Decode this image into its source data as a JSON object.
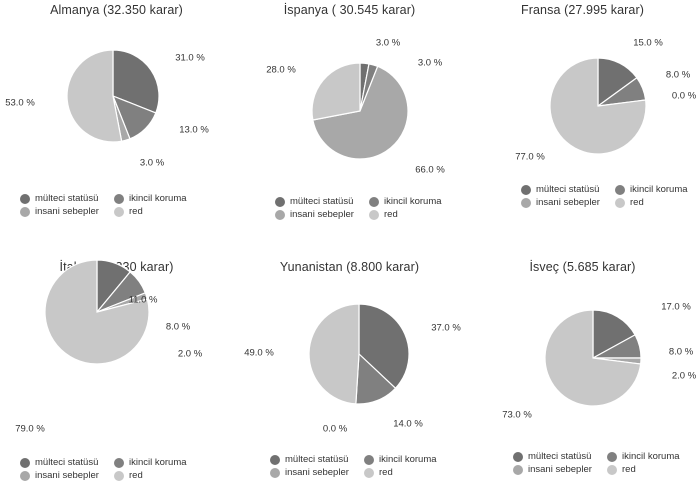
{
  "legend": [
    {
      "label": "mülteci statüsü",
      "color": "#707070"
    },
    {
      "label": "ikincil koruma",
      "color": "#808080"
    },
    {
      "label": "insani sebepler",
      "color": "#a8a8a8"
    },
    {
      "label": "red",
      "color": "#c8c8c8"
    }
  ],
  "chart_data": [
    {
      "type": "pie",
      "title": "Almanya (32.350 karar)",
      "categories": [
        "mülteci statüsü",
        "ikincil koruma",
        "insani sebepler",
        "red"
      ],
      "values": [
        31.0,
        13.0,
        3.0,
        53.0
      ],
      "labels": [
        "31.0 %",
        "13.0 %",
        "3.0 %",
        "53.0 %"
      ]
    },
    {
      "type": "pie",
      "title": "İspanya ( 30.545 karar)",
      "categories": [
        "mülteci statüsü",
        "ikincil koruma",
        "insani sebepler",
        "red"
      ],
      "values": [
        3.0,
        3.0,
        66.0,
        28.0
      ],
      "labels": [
        "3.0 %",
        "3.0 %",
        "66.0 %",
        "28.0 %"
      ]
    },
    {
      "type": "pie",
      "title": "Fransa (27.995 karar)",
      "categories": [
        "mülteci statüsü",
        "ikincil koruma",
        "insani sebepler",
        "red"
      ],
      "values": [
        15.0,
        8.0,
        0.0,
        77.0
      ],
      "labels": [
        "15.0 %",
        "8.0 %",
        "0.0 %",
        "77.0 %"
      ]
    },
    {
      "type": "pie",
      "title": "İtalya (22.330 karar)",
      "categories": [
        "mülteci statüsü",
        "ikincil koruma",
        "insani sebepler",
        "red"
      ],
      "values": [
        11.0,
        8.0,
        2.0,
        79.0
      ],
      "labels": [
        "11.0 %",
        "8.0 %",
        "2.0 %",
        "79.0 %"
      ]
    },
    {
      "type": "pie",
      "title": "Yunanistan (8.800 karar)",
      "categories": [
        "mülteci statüsü",
        "ikincil koruma",
        "insani sebepler",
        "red"
      ],
      "values": [
        37.0,
        14.0,
        0.0,
        49.0
      ],
      "labels": [
        "37.0 %",
        "14.0 %",
        "0.0 %",
        "49.0 %"
      ]
    },
    {
      "type": "pie",
      "title": "İsveç (5.685 karar)",
      "categories": [
        "mülteci statüsü",
        "ikincil koruma",
        "insani sebepler",
        "red"
      ],
      "values": [
        17.0,
        8.0,
        2.0,
        73.0
      ],
      "labels": [
        "17.0 %",
        "8.0 %",
        "2.0 %",
        "73.0 %"
      ]
    }
  ]
}
